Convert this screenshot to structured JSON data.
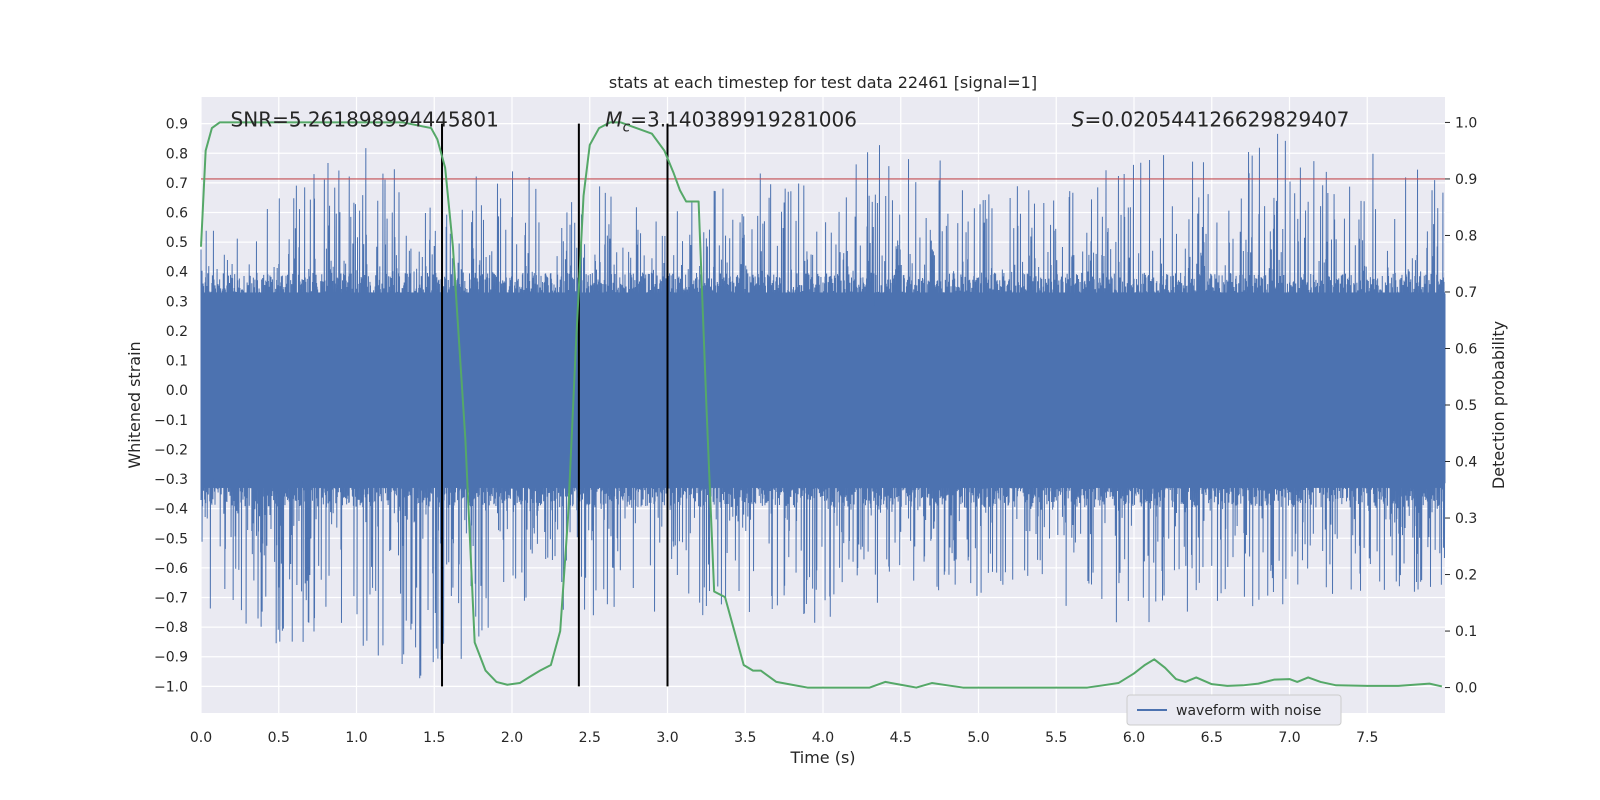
{
  "chart_data": {
    "type": "line",
    "title": "stats at each timestep for test data 22461 [signal=1]",
    "xlabel": "Time (s)",
    "ylabel": "Whitened strain",
    "y2label": "Detection probability",
    "xlim": [
      0.0,
      8.0
    ],
    "ylim": [
      -1.09,
      0.99
    ],
    "y2lim": [
      -0.045,
      1.045
    ],
    "x_ticks": [
      0.0,
      0.5,
      1.0,
      1.5,
      2.0,
      2.5,
      3.0,
      3.5,
      4.0,
      4.5,
      5.0,
      5.5,
      6.0,
      6.5,
      7.0,
      7.5
    ],
    "x_tick_labels": [
      "0.0",
      "0.5",
      "1.0",
      "1.5",
      "2.0",
      "2.5",
      "3.0",
      "3.5",
      "4.0",
      "4.5",
      "5.0",
      "5.5",
      "6.0",
      "6.5",
      "7.0",
      "7.5"
    ],
    "y_ticks": [
      -1.0,
      -0.9,
      -0.8,
      -0.7,
      -0.6,
      -0.5,
      -0.4,
      -0.3,
      -0.2,
      -0.1,
      0.0,
      0.1,
      0.2,
      0.3,
      0.4,
      0.5,
      0.6,
      0.7,
      0.8,
      0.9
    ],
    "y_tick_labels": [
      "−1.0",
      "−0.9",
      "−0.8",
      "−0.7",
      "−0.6",
      "−0.5",
      "−0.4",
      "−0.3",
      "−0.2",
      "−0.1",
      "0.0",
      "0.1",
      "0.2",
      "0.3",
      "0.4",
      "0.5",
      "0.6",
      "0.7",
      "0.8",
      "0.9"
    ],
    "y2_ticks": [
      0.0,
      0.1,
      0.2,
      0.3,
      0.4,
      0.5,
      0.6,
      0.7,
      0.8,
      0.9,
      1.0
    ],
    "y2_tick_labels": [
      "0.0",
      "0.1",
      "0.2",
      "0.3",
      "0.4",
      "0.5",
      "0.6",
      "0.7",
      "0.8",
      "0.9",
      "1.0"
    ],
    "threshold": {
      "axis": "y2",
      "value": 0.9,
      "color": "#c44e52"
    },
    "vertical_lines": [
      1.55,
      2.43,
      3.0
    ],
    "vertical_line_range": [
      -1.0,
      0.9
    ],
    "annotations": [
      {
        "prefix": "SNR=",
        "value": "5.261898994445801",
        "x": 0.19
      },
      {
        "prefix": "M",
        "subscript": "c",
        "suffix": "=",
        "value": "3.140389919281006",
        "x": 2.6
      },
      {
        "prefix": "S",
        "suffix": "=",
        "value": "0.020544126629829407",
        "x": 5.6
      }
    ],
    "annotation_y": 0.89,
    "legend": {
      "entries": [
        "waveform with noise"
      ],
      "location": "lower right"
    },
    "series": [
      {
        "name": "waveform with noise",
        "axis": "y",
        "color": "#4c72b0",
        "style": "noise",
        "core_amplitude": 0.33,
        "spike_envelope": {
          "x": [
            0.0,
            0.5,
            1.0,
            1.5,
            2.0,
            2.5,
            3.0,
            3.5,
            4.0,
            4.5,
            5.0,
            5.5,
            6.0,
            6.5,
            7.0,
            7.5,
            8.0
          ],
          "max": [
            0.65,
            0.65,
            0.87,
            0.63,
            0.82,
            0.7,
            0.62,
            0.76,
            0.72,
            0.88,
            0.7,
            0.7,
            0.82,
            0.8,
            0.9,
            0.84,
            0.7
          ],
          "min": [
            -0.75,
            -0.86,
            -0.9,
            -1.0,
            -0.75,
            -0.8,
            -0.82,
            -0.84,
            -0.79,
            -0.7,
            -0.7,
            -0.72,
            -0.81,
            -0.78,
            -0.73,
            -0.7,
            -0.67
          ]
        }
      },
      {
        "name": "detection probability",
        "axis": "y2",
        "color": "#55a868",
        "x": [
          0.0,
          0.03,
          0.07,
          0.12,
          0.2,
          0.3,
          0.5,
          0.7,
          0.9,
          1.1,
          1.3,
          1.48,
          1.52,
          1.57,
          1.62,
          1.7,
          1.76,
          1.83,
          1.9,
          1.97,
          2.05,
          2.12,
          2.18,
          2.25,
          2.31,
          2.36,
          2.41,
          2.46,
          2.5,
          2.56,
          2.63,
          2.7,
          2.8,
          2.9,
          2.98,
          3.04,
          3.08,
          3.12,
          3.15,
          3.2,
          3.25,
          3.3,
          3.37,
          3.43,
          3.49,
          3.55,
          3.6,
          3.7,
          3.8,
          3.9,
          4.0,
          4.1,
          4.2,
          4.3,
          4.4,
          4.5,
          4.6,
          4.7,
          4.8,
          4.9,
          5.0,
          5.1,
          5.3,
          5.5,
          5.7,
          5.8,
          5.9,
          6.0,
          6.07,
          6.13,
          6.2,
          6.27,
          6.33,
          6.4,
          6.5,
          6.6,
          6.7,
          6.8,
          6.9,
          7.0,
          7.05,
          7.12,
          7.2,
          7.3,
          7.5,
          7.7,
          7.9,
          7.98
        ],
        "values": [
          0.78,
          0.95,
          0.99,
          1.0,
          1.0,
          1.0,
          1.0,
          1.0,
          1.0,
          1.0,
          1.0,
          0.99,
          0.97,
          0.92,
          0.78,
          0.44,
          0.08,
          0.03,
          0.01,
          0.005,
          0.008,
          0.02,
          0.03,
          0.04,
          0.1,
          0.3,
          0.6,
          0.87,
          0.96,
          0.99,
          1.0,
          1.0,
          0.99,
          0.98,
          0.95,
          0.91,
          0.88,
          0.86,
          0.86,
          0.86,
          0.5,
          0.17,
          0.16,
          0.1,
          0.04,
          0.03,
          0.03,
          0.01,
          0.005,
          0.0,
          0.0,
          0.0,
          0.0,
          0.0,
          0.01,
          0.005,
          0.0,
          0.008,
          0.004,
          0.0,
          0.0,
          0.0,
          0.0,
          0.0,
          0.0,
          0.004,
          0.008,
          0.025,
          0.04,
          0.05,
          0.035,
          0.015,
          0.01,
          0.018,
          0.006,
          0.003,
          0.004,
          0.007,
          0.014,
          0.015,
          0.01,
          0.018,
          0.01,
          0.004,
          0.003,
          0.003,
          0.007,
          0.002
        ]
      }
    ]
  }
}
